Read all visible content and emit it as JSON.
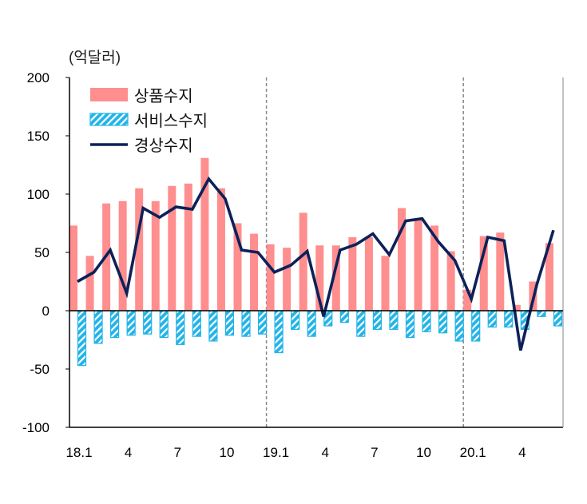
{
  "chart_data": {
    "type": "bar",
    "unit_label": "(억달러)",
    "ylim": [
      -100,
      200
    ],
    "yticks": [
      "200",
      "150",
      "100",
      "50",
      "0",
      "-50",
      "-100"
    ],
    "ytick_values": [
      200,
      150,
      100,
      50,
      0,
      -50,
      -100
    ],
    "x": [
      "18.1",
      "18.2",
      "18.3",
      "18.4",
      "18.5",
      "18.6",
      "18.7",
      "18.8",
      "18.9",
      "18.10",
      "18.11",
      "18.12",
      "19.1",
      "19.2",
      "19.3",
      "19.4",
      "19.5",
      "19.6",
      "19.7",
      "19.8",
      "19.9",
      "19.10",
      "19.11",
      "19.12",
      "20.1",
      "20.2",
      "20.3",
      "20.4",
      "20.5",
      "20.6"
    ],
    "xtick_labels": [
      {
        "index": 0,
        "label": "18.1"
      },
      {
        "index": 3,
        "label": "4"
      },
      {
        "index": 6,
        "label": "7"
      },
      {
        "index": 9,
        "label": "10"
      },
      {
        "index": 12,
        "label": "19.1"
      },
      {
        "index": 15,
        "label": "4"
      },
      {
        "index": 18,
        "label": "7"
      },
      {
        "index": 21,
        "label": "10"
      },
      {
        "index": 24,
        "label": "20.1"
      },
      {
        "index": 27,
        "label": "4"
      }
    ],
    "year_dividers_before_index": [
      12,
      24
    ],
    "series": [
      {
        "name": "상품수지",
        "kind": "bar",
        "color": "#ff8e8e",
        "values": [
          73,
          47,
          92,
          94,
          105,
          94,
          107,
          109,
          131,
          105,
          75,
          66,
          57,
          54,
          84,
          56,
          56,
          63,
          63,
          47,
          88,
          79,
          73,
          51,
          18,
          64,
          67,
          5,
          25,
          58
        ]
      },
      {
        "name": "서비스수지",
        "kind": "hatched-bar",
        "color": "#22b4e8",
        "values": [
          -47,
          -28,
          -23,
          -21,
          -20,
          -23,
          -29,
          -22,
          -26,
          -21,
          -22,
          -20,
          -36,
          -16,
          -22,
          -13,
          -10,
          -22,
          -16,
          -16,
          -23,
          -18,
          -19,
          -26,
          -26,
          -14,
          -14,
          -16,
          -5,
          -13
        ]
      },
      {
        "name": "경상수지",
        "kind": "line",
        "color": "#0d2159",
        "values": [
          25,
          33,
          52,
          15,
          88,
          80,
          89,
          87,
          113,
          96,
          52,
          50,
          33,
          39,
          51,
          -5,
          52,
          57,
          66,
          48,
          77,
          79,
          59,
          43,
          10,
          63,
          60,
          -34,
          23,
          69
        ]
      }
    ],
    "legend_position": "top-left",
    "grid": false
  }
}
